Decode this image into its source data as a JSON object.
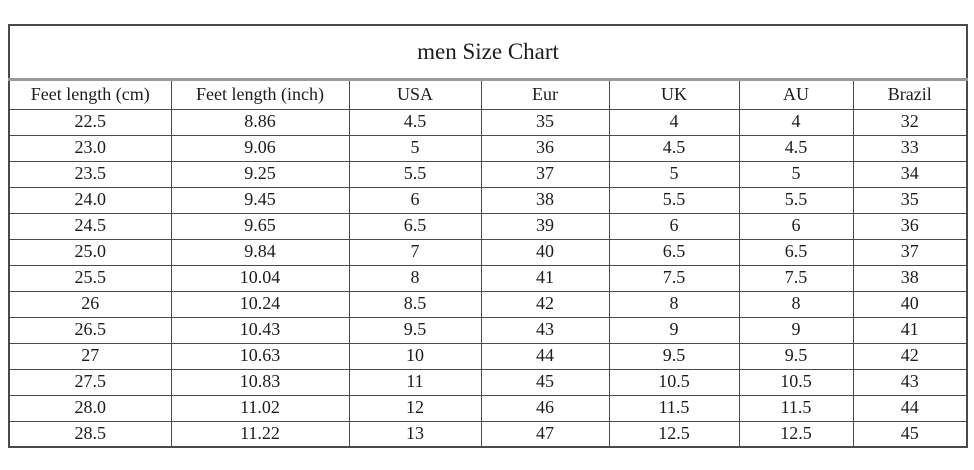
{
  "chart_data": {
    "type": "table",
    "title": "men Size Chart",
    "columns": [
      "Feet length (cm)",
      "Feet length (inch)",
      "USA",
      "Eur",
      "UK",
      "AU",
      "Brazil"
    ],
    "rows": [
      [
        "22.5",
        "8.86",
        "4.5",
        "35",
        "4",
        "4",
        "32"
      ],
      [
        "23.0",
        "9.06",
        "5",
        "36",
        "4.5",
        "4.5",
        "33"
      ],
      [
        "23.5",
        "9.25",
        "5.5",
        "37",
        "5",
        "5",
        "34"
      ],
      [
        "24.0",
        "9.45",
        "6",
        "38",
        "5.5",
        "5.5",
        "35"
      ],
      [
        "24.5",
        "9.65",
        "6.5",
        "39",
        "6",
        "6",
        "36"
      ],
      [
        "25.0",
        "9.84",
        "7",
        "40",
        "6.5",
        "6.5",
        "37"
      ],
      [
        "25.5",
        "10.04",
        "8",
        "41",
        "7.5",
        "7.5",
        "38"
      ],
      [
        "26",
        "10.24",
        "8.5",
        "42",
        "8",
        "8",
        "40"
      ],
      [
        "26.5",
        "10.43",
        "9.5",
        "43",
        "9",
        "9",
        "41"
      ],
      [
        "27",
        "10.63",
        "10",
        "44",
        "9.5",
        "9.5",
        "42"
      ],
      [
        "27.5",
        "10.83",
        "11",
        "45",
        "10.5",
        "10.5",
        "43"
      ],
      [
        "28.0",
        "11.02",
        "12",
        "46",
        "11.5",
        "11.5",
        "44"
      ],
      [
        "28.5",
        "11.22",
        "13",
        "47",
        "12.5",
        "12.5",
        "45"
      ]
    ],
    "layout": {
      "grid": "on",
      "title_position": "top-center-spanning-row",
      "header_separator": "thick-gray-line-under-title"
    }
  },
  "colors": {
    "border": "#4a4a4a",
    "title_separator": "#9a9a9a",
    "text": "#1c1c1c",
    "background": "#ffffff"
  }
}
